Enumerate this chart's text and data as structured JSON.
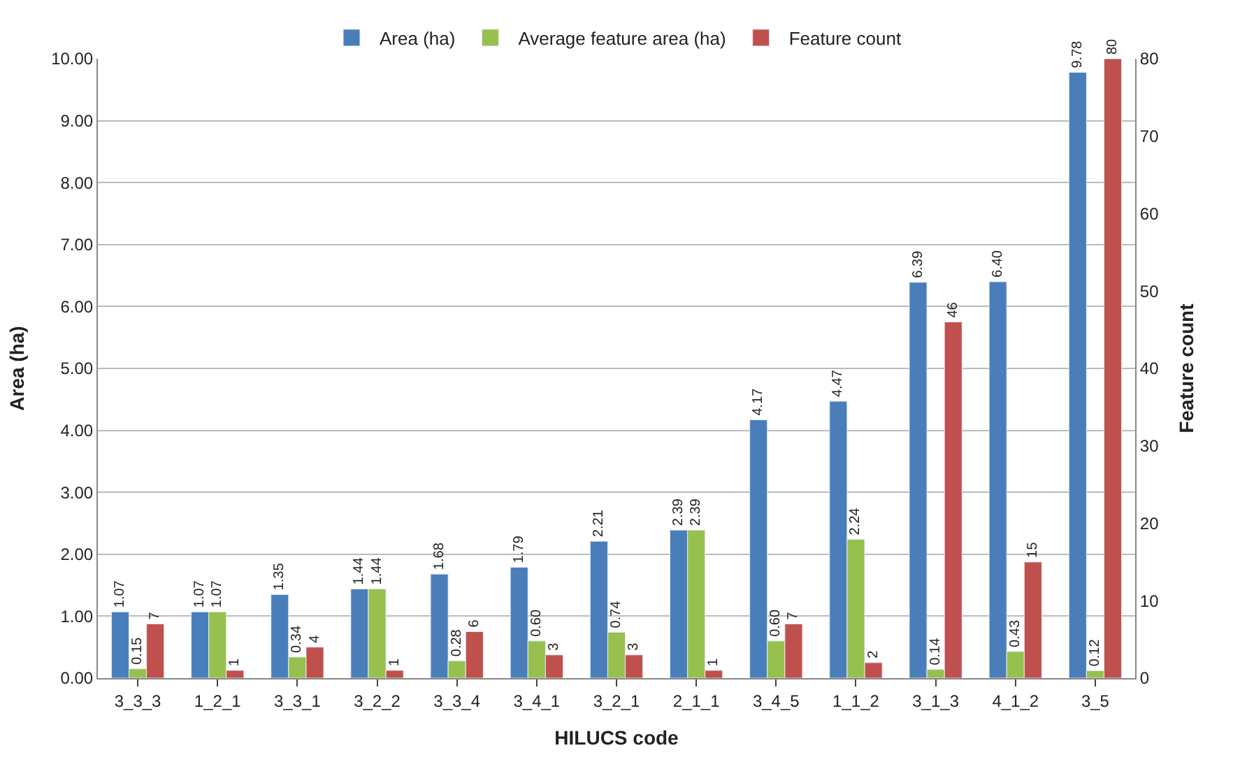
{
  "chart_data": {
    "type": "bar",
    "xlabel": "HILUCS code",
    "ylabel": "Area (ha)",
    "y2label": "Feature count",
    "categories": [
      "3_3_3",
      "1_2_1",
      "3_3_1",
      "3_2_2",
      "3_3_4",
      "3_4_1",
      "3_2_1",
      "2_1_1",
      "3_4_5",
      "1_1_2",
      "3_1_3",
      "4_1_2",
      "3_5"
    ],
    "series": [
      {
        "name": "Area (ha)",
        "color": "#4a7ebb",
        "values": [
          1.07,
          1.07,
          1.35,
          1.44,
          1.68,
          1.79,
          2.21,
          2.39,
          4.17,
          4.47,
          6.39,
          6.4,
          9.78
        ],
        "value_labels": [
          "1.07",
          "1.07",
          "1.35",
          "1.44",
          "1.68",
          "1.79",
          "2.21",
          "2.39",
          "4.17",
          "4.47",
          "6.39",
          "6.40",
          "9.78"
        ]
      },
      {
        "name": "Average feature area (ha)",
        "color": "#98c04f",
        "values": [
          0.15,
          1.07,
          0.34,
          1.44,
          0.28,
          0.6,
          0.74,
          2.39,
          0.6,
          2.24,
          0.14,
          0.43,
          0.12
        ],
        "value_labels": [
          "0.15",
          "1.07",
          "0.34",
          "1.44",
          "0.28",
          "0.60",
          "0.74",
          "2.39",
          "0.60",
          "2.24",
          "0.14",
          "0.43",
          "0.12"
        ]
      },
      {
        "name": "Feature count",
        "color": "#c0504d",
        "axis": "y2",
        "values": [
          7,
          1,
          4,
          1,
          6,
          3,
          3,
          1,
          7,
          2,
          46,
          15,
          80
        ],
        "value_labels": [
          "7",
          "1",
          "4",
          "1",
          "6",
          "3",
          "3",
          "1",
          "7",
          "2",
          "46",
          "15",
          "80"
        ]
      }
    ],
    "ylim": [
      0,
      10
    ],
    "yticks": [
      {
        "value": 0,
        "label": "0.00"
      },
      {
        "value": 1,
        "label": "1.00"
      },
      {
        "value": 2,
        "label": "2.00"
      },
      {
        "value": 3,
        "label": "3.00"
      },
      {
        "value": 4,
        "label": "4.00"
      },
      {
        "value": 5,
        "label": "5.00"
      },
      {
        "value": 6,
        "label": "6.00"
      },
      {
        "value": 7,
        "label": "7.00"
      },
      {
        "value": 8,
        "label": "8.00"
      },
      {
        "value": 9,
        "label": "9.00"
      },
      {
        "value": 10,
        "label": "10.00"
      }
    ],
    "y2lim": [
      0,
      80
    ],
    "y2ticks": [
      0,
      10,
      20,
      30,
      40,
      50,
      60,
      70,
      80
    ],
    "grid": "y",
    "legend": "top"
  }
}
